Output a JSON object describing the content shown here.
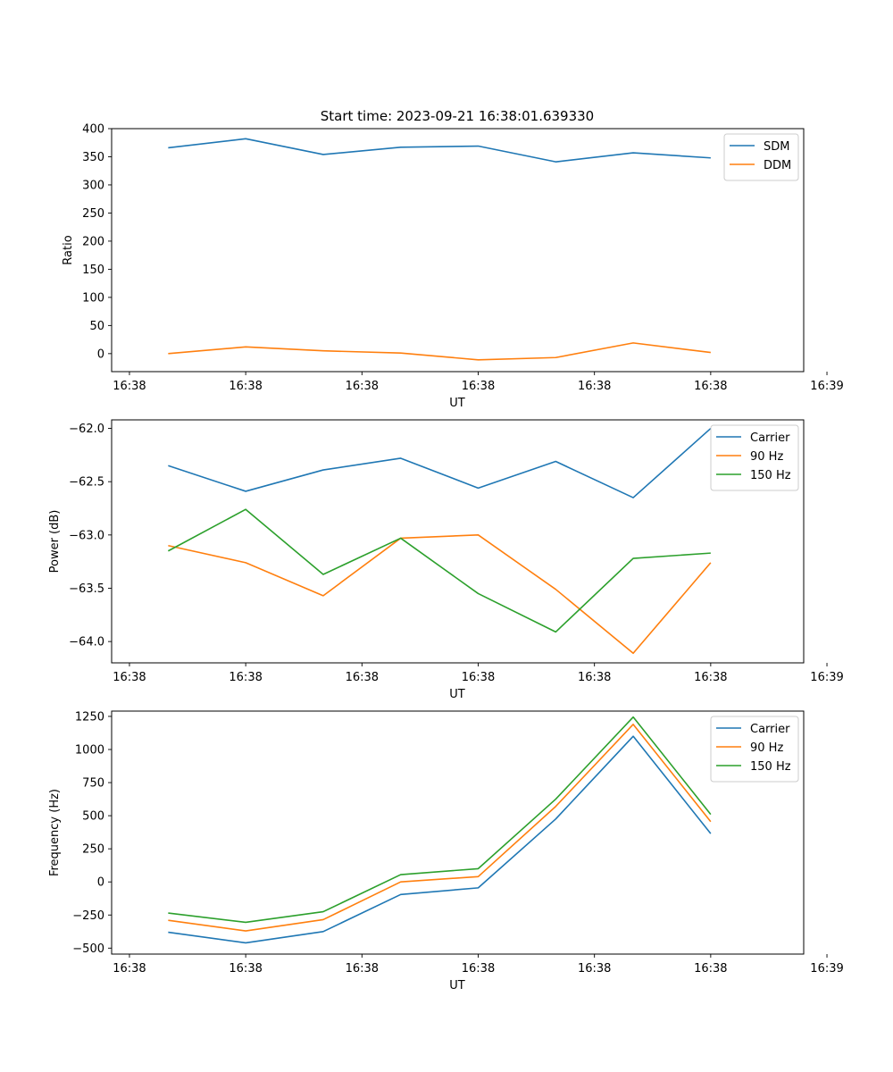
{
  "figure_title": "Start time: 2023-09-21 16:38:01.639330",
  "colors": {
    "c0": "#1f77b4",
    "c1": "#ff7f0e",
    "c2": "#2ca02c"
  },
  "chart_data": [
    {
      "type": "line",
      "ylabel": "Ratio",
      "xlabel": "UT",
      "x_tick_labels": [
        "16:38",
        "16:38",
        "16:38",
        "16:38",
        "16:38",
        "16:38",
        "16:38"
      ],
      "x_tick_last_label": "16:39",
      "x_points": [
        1,
        2,
        3,
        4,
        5,
        6,
        7,
        8
      ],
      "xlim": [
        0.27,
        9.2
      ],
      "ylim": [
        -32,
        400
      ],
      "yticks": [
        0,
        50,
        100,
        150,
        200,
        250,
        300,
        350,
        400
      ],
      "legend_position": "top-right",
      "series": [
        {
          "name": "SDM",
          "color": "#1f77b4",
          "values": [
            366,
            382,
            354,
            367,
            369,
            341,
            357,
            348
          ]
        },
        {
          "name": "DDM",
          "color": "#ff7f0e",
          "values": [
            0,
            12,
            5,
            1,
            -11,
            -7,
            19,
            2
          ]
        }
      ]
    },
    {
      "type": "line",
      "ylabel": "Power (dB)",
      "xlabel": "UT",
      "x_tick_labels": [
        "16:38",
        "16:38",
        "16:38",
        "16:38",
        "16:38",
        "16:38",
        "16:38"
      ],
      "x_tick_last_label": "16:39",
      "x_points": [
        1,
        2,
        3,
        4,
        5,
        6,
        7,
        8
      ],
      "xlim": [
        0.27,
        9.2
      ],
      "ylim": [
        -64.2,
        -61.92
      ],
      "yticks": [
        -64.0,
        -63.5,
        -63.0,
        -62.5,
        -62.0
      ],
      "ytick_labels": [
        "−64.0",
        "−63.5",
        "−63.0",
        "−62.5",
        "−62.0"
      ],
      "legend_position": "top-right",
      "series": [
        {
          "name": "Carrier",
          "color": "#1f77b4",
          "values": [
            -62.35,
            -62.59,
            -62.39,
            -62.28,
            -62.56,
            -62.31,
            -62.65,
            -62.0
          ]
        },
        {
          "name": "90 Hz",
          "color": "#ff7f0e",
          "values": [
            -63.1,
            -63.26,
            -63.57,
            -63.03,
            -63.0,
            -63.51,
            -64.11,
            -63.26
          ]
        },
        {
          "name": "150 Hz",
          "color": "#2ca02c",
          "values": [
            -63.15,
            -62.76,
            -63.37,
            -63.03,
            -63.55,
            -63.91,
            -63.22,
            -63.17
          ]
        }
      ]
    },
    {
      "type": "line",
      "ylabel": "Frequency (Hz)",
      "xlabel": "UT",
      "x_tick_labels": [
        "16:38",
        "16:38",
        "16:38",
        "16:38",
        "16:38",
        "16:38",
        "16:38"
      ],
      "x_tick_last_label": "16:39",
      "x_points": [
        1,
        2,
        3,
        4,
        5,
        6,
        7,
        8
      ],
      "xlim": [
        0.27,
        9.2
      ],
      "ylim": [
        -545,
        1290
      ],
      "yticks": [
        -500,
        -250,
        0,
        250,
        500,
        750,
        1000,
        1250
      ],
      "ytick_labels": [
        "−500",
        "−250",
        "0",
        "250",
        "500",
        "750",
        "1000",
        "1250"
      ],
      "legend_position": "top-right",
      "series": [
        {
          "name": "Carrier",
          "color": "#1f77b4",
          "values": [
            -380,
            -460,
            -375,
            -95,
            -45,
            475,
            1100,
            365
          ]
        },
        {
          "name": "90 Hz",
          "color": "#ff7f0e",
          "values": [
            -290,
            -370,
            -285,
            0,
            40,
            570,
            1190,
            455
          ]
        },
        {
          "name": "150 Hz",
          "color": "#2ca02c",
          "values": [
            -235,
            -305,
            -225,
            55,
            100,
            625,
            1245,
            510
          ]
        }
      ]
    }
  ]
}
